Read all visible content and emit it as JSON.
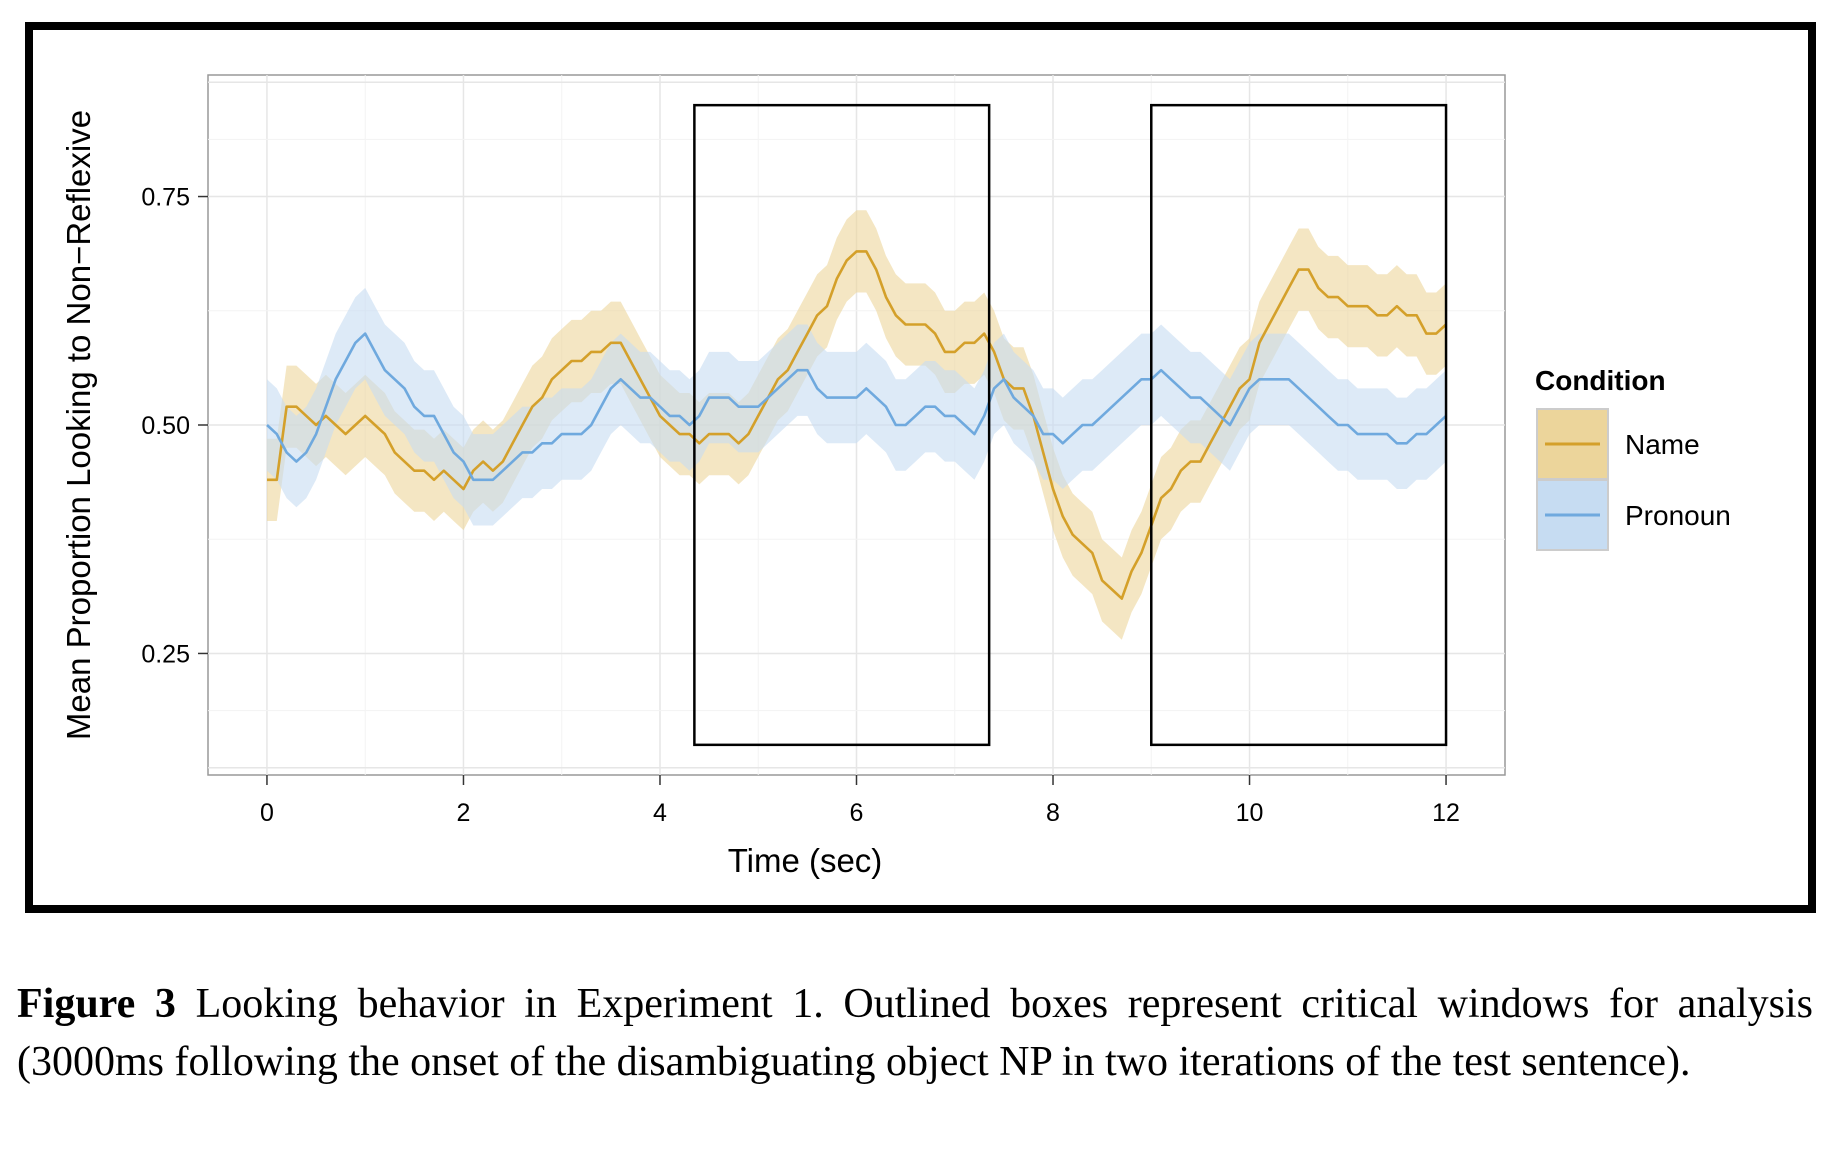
{
  "chart_data": {
    "type": "line",
    "xlabel": "Time (sec)",
    "ylabel": "Mean Proportion Looking to Non−Reflexive",
    "xlim": [
      -0.6,
      12.6
    ],
    "ylim": [
      0.117,
      0.883
    ],
    "x_ticks": [
      "0",
      "2",
      "4",
      "6",
      "8",
      "10",
      "12"
    ],
    "x_tick_values": [
      0,
      2,
      4,
      6,
      8,
      10,
      12
    ],
    "y_ticks": [
      "0.25",
      "0.50",
      "0.75"
    ],
    "y_tick_values": [
      0.25,
      0.5,
      0.75
    ],
    "grid": true,
    "legend": {
      "title": "Condition",
      "position": "right"
    },
    "critical_windows": [
      {
        "x_start": 4.35,
        "x_end": 7.35,
        "y_bottom": 0.15,
        "y_top": 0.85
      },
      {
        "x_start": 9.0,
        "x_end": 12.0,
        "y_bottom": 0.15,
        "y_top": 0.85
      }
    ],
    "series": [
      {
        "name": "Name",
        "color": "#d4a02a",
        "band_color": "#ecd59b",
        "ci_halfwidth": 0.045,
        "points": [
          [
            0,
            0.44
          ],
          [
            0.1,
            0.44
          ],
          [
            0.2,
            0.52
          ],
          [
            0.3,
            0.52
          ],
          [
            0.4,
            0.51
          ],
          [
            0.5,
            0.5
          ],
          [
            0.6,
            0.51
          ],
          [
            0.7,
            0.5
          ],
          [
            0.8,
            0.49
          ],
          [
            0.9,
            0.5
          ],
          [
            1.0,
            0.51
          ],
          [
            1.1,
            0.5
          ],
          [
            1.2,
            0.49
          ],
          [
            1.3,
            0.47
          ],
          [
            1.4,
            0.46
          ],
          [
            1.5,
            0.45
          ],
          [
            1.6,
            0.45
          ],
          [
            1.7,
            0.44
          ],
          [
            1.8,
            0.45
          ],
          [
            1.9,
            0.44
          ],
          [
            2.0,
            0.43
          ],
          [
            2.1,
            0.45
          ],
          [
            2.2,
            0.46
          ],
          [
            2.3,
            0.45
          ],
          [
            2.4,
            0.46
          ],
          [
            2.5,
            0.48
          ],
          [
            2.6,
            0.5
          ],
          [
            2.7,
            0.52
          ],
          [
            2.8,
            0.53
          ],
          [
            2.9,
            0.55
          ],
          [
            3.0,
            0.56
          ],
          [
            3.1,
            0.57
          ],
          [
            3.2,
            0.57
          ],
          [
            3.3,
            0.58
          ],
          [
            3.4,
            0.58
          ],
          [
            3.5,
            0.59
          ],
          [
            3.6,
            0.59
          ],
          [
            3.7,
            0.57
          ],
          [
            3.8,
            0.55
          ],
          [
            3.9,
            0.53
          ],
          [
            4.0,
            0.51
          ],
          [
            4.1,
            0.5
          ],
          [
            4.2,
            0.49
          ],
          [
            4.3,
            0.49
          ],
          [
            4.4,
            0.48
          ],
          [
            4.5,
            0.49
          ],
          [
            4.6,
            0.49
          ],
          [
            4.7,
            0.49
          ],
          [
            4.8,
            0.48
          ],
          [
            4.9,
            0.49
          ],
          [
            5.0,
            0.51
          ],
          [
            5.1,
            0.53
          ],
          [
            5.2,
            0.55
          ],
          [
            5.3,
            0.56
          ],
          [
            5.4,
            0.58
          ],
          [
            5.5,
            0.6
          ],
          [
            5.6,
            0.62
          ],
          [
            5.7,
            0.63
          ],
          [
            5.8,
            0.66
          ],
          [
            5.9,
            0.68
          ],
          [
            6.0,
            0.69
          ],
          [
            6.1,
            0.69
          ],
          [
            6.2,
            0.67
          ],
          [
            6.3,
            0.64
          ],
          [
            6.4,
            0.62
          ],
          [
            6.5,
            0.61
          ],
          [
            6.6,
            0.61
          ],
          [
            6.7,
            0.61
          ],
          [
            6.8,
            0.6
          ],
          [
            6.9,
            0.58
          ],
          [
            7.0,
            0.58
          ],
          [
            7.1,
            0.59
          ],
          [
            7.2,
            0.59
          ],
          [
            7.3,
            0.6
          ],
          [
            7.4,
            0.58
          ],
          [
            7.5,
            0.55
          ],
          [
            7.6,
            0.54
          ],
          [
            7.7,
            0.54
          ],
          [
            7.8,
            0.51
          ],
          [
            7.9,
            0.47
          ],
          [
            8.0,
            0.43
          ],
          [
            8.1,
            0.4
          ],
          [
            8.2,
            0.38
          ],
          [
            8.3,
            0.37
          ],
          [
            8.4,
            0.36
          ],
          [
            8.5,
            0.33
          ],
          [
            8.6,
            0.32
          ],
          [
            8.7,
            0.31
          ],
          [
            8.8,
            0.34
          ],
          [
            8.9,
            0.36
          ],
          [
            9.0,
            0.39
          ],
          [
            9.1,
            0.42
          ],
          [
            9.2,
            0.43
          ],
          [
            9.3,
            0.45
          ],
          [
            9.4,
            0.46
          ],
          [
            9.5,
            0.46
          ],
          [
            9.6,
            0.48
          ],
          [
            9.7,
            0.5
          ],
          [
            9.8,
            0.52
          ],
          [
            9.9,
            0.54
          ],
          [
            10.0,
            0.55
          ],
          [
            10.1,
            0.59
          ],
          [
            10.2,
            0.61
          ],
          [
            10.3,
            0.63
          ],
          [
            10.4,
            0.65
          ],
          [
            10.5,
            0.67
          ],
          [
            10.6,
            0.67
          ],
          [
            10.7,
            0.65
          ],
          [
            10.8,
            0.64
          ],
          [
            10.9,
            0.64
          ],
          [
            11.0,
            0.63
          ],
          [
            11.1,
            0.63
          ],
          [
            11.2,
            0.63
          ],
          [
            11.3,
            0.62
          ],
          [
            11.4,
            0.62
          ],
          [
            11.5,
            0.63
          ],
          [
            11.6,
            0.62
          ],
          [
            11.7,
            0.62
          ],
          [
            11.8,
            0.6
          ],
          [
            11.9,
            0.6
          ],
          [
            12.0,
            0.61
          ]
        ]
      },
      {
        "name": "Pronoun",
        "color": "#6fa9de",
        "band_color": "#c6dcf2",
        "ci_halfwidth": 0.05,
        "points": [
          [
            0,
            0.5
          ],
          [
            0.1,
            0.49
          ],
          [
            0.2,
            0.47
          ],
          [
            0.3,
            0.46
          ],
          [
            0.4,
            0.47
          ],
          [
            0.5,
            0.49
          ],
          [
            0.6,
            0.52
          ],
          [
            0.7,
            0.55
          ],
          [
            0.8,
            0.57
          ],
          [
            0.9,
            0.59
          ],
          [
            1.0,
            0.6
          ],
          [
            1.1,
            0.58
          ],
          [
            1.2,
            0.56
          ],
          [
            1.3,
            0.55
          ],
          [
            1.4,
            0.54
          ],
          [
            1.5,
            0.52
          ],
          [
            1.6,
            0.51
          ],
          [
            1.7,
            0.51
          ],
          [
            1.8,
            0.49
          ],
          [
            1.9,
            0.47
          ],
          [
            2.0,
            0.46
          ],
          [
            2.1,
            0.44
          ],
          [
            2.2,
            0.44
          ],
          [
            2.3,
            0.44
          ],
          [
            2.4,
            0.45
          ],
          [
            2.5,
            0.46
          ],
          [
            2.6,
            0.47
          ],
          [
            2.7,
            0.47
          ],
          [
            2.8,
            0.48
          ],
          [
            2.9,
            0.48
          ],
          [
            3.0,
            0.49
          ],
          [
            3.1,
            0.49
          ],
          [
            3.2,
            0.49
          ],
          [
            3.3,
            0.5
          ],
          [
            3.4,
            0.52
          ],
          [
            3.5,
            0.54
          ],
          [
            3.6,
            0.55
          ],
          [
            3.7,
            0.54
          ],
          [
            3.8,
            0.53
          ],
          [
            3.9,
            0.53
          ],
          [
            4.0,
            0.52
          ],
          [
            4.1,
            0.51
          ],
          [
            4.2,
            0.51
          ],
          [
            4.3,
            0.5
          ],
          [
            4.4,
            0.51
          ],
          [
            4.5,
            0.53
          ],
          [
            4.6,
            0.53
          ],
          [
            4.7,
            0.53
          ],
          [
            4.8,
            0.52
          ],
          [
            4.9,
            0.52
          ],
          [
            5.0,
            0.52
          ],
          [
            5.1,
            0.53
          ],
          [
            5.2,
            0.54
          ],
          [
            5.3,
            0.55
          ],
          [
            5.4,
            0.56
          ],
          [
            5.5,
            0.56
          ],
          [
            5.6,
            0.54
          ],
          [
            5.7,
            0.53
          ],
          [
            5.8,
            0.53
          ],
          [
            5.9,
            0.53
          ],
          [
            6.0,
            0.53
          ],
          [
            6.1,
            0.54
          ],
          [
            6.2,
            0.53
          ],
          [
            6.3,
            0.52
          ],
          [
            6.4,
            0.5
          ],
          [
            6.5,
            0.5
          ],
          [
            6.6,
            0.51
          ],
          [
            6.7,
            0.52
          ],
          [
            6.8,
            0.52
          ],
          [
            6.9,
            0.51
          ],
          [
            7.0,
            0.51
          ],
          [
            7.1,
            0.5
          ],
          [
            7.2,
            0.49
          ],
          [
            7.3,
            0.51
          ],
          [
            7.4,
            0.54
          ],
          [
            7.5,
            0.55
          ],
          [
            7.6,
            0.53
          ],
          [
            7.7,
            0.52
          ],
          [
            7.8,
            0.51
          ],
          [
            7.9,
            0.49
          ],
          [
            8.0,
            0.49
          ],
          [
            8.1,
            0.48
          ],
          [
            8.2,
            0.49
          ],
          [
            8.3,
            0.5
          ],
          [
            8.4,
            0.5
          ],
          [
            8.5,
            0.51
          ],
          [
            8.6,
            0.52
          ],
          [
            8.7,
            0.53
          ],
          [
            8.8,
            0.54
          ],
          [
            8.9,
            0.55
          ],
          [
            9.0,
            0.55
          ],
          [
            9.1,
            0.56
          ],
          [
            9.2,
            0.55
          ],
          [
            9.3,
            0.54
          ],
          [
            9.4,
            0.53
          ],
          [
            9.5,
            0.53
          ],
          [
            9.6,
            0.52
          ],
          [
            9.7,
            0.51
          ],
          [
            9.8,
            0.5
          ],
          [
            9.9,
            0.52
          ],
          [
            10.0,
            0.54
          ],
          [
            10.1,
            0.55
          ],
          [
            10.2,
            0.55
          ],
          [
            10.3,
            0.55
          ],
          [
            10.4,
            0.55
          ],
          [
            10.5,
            0.54
          ],
          [
            10.6,
            0.53
          ],
          [
            10.7,
            0.52
          ],
          [
            10.8,
            0.51
          ],
          [
            10.9,
            0.5
          ],
          [
            11.0,
            0.5
          ],
          [
            11.1,
            0.49
          ],
          [
            11.2,
            0.49
          ],
          [
            11.3,
            0.49
          ],
          [
            11.4,
            0.49
          ],
          [
            11.5,
            0.48
          ],
          [
            11.6,
            0.48
          ],
          [
            11.7,
            0.49
          ],
          [
            11.8,
            0.49
          ],
          [
            11.9,
            0.5
          ],
          [
            12.0,
            0.51
          ]
        ]
      }
    ]
  },
  "caption": {
    "label": "Figure 3",
    "text": " Looking behavior in Experiment 1. Outlined boxes represent critical windows for analysis (3000ms following the onset of the disambiguating object NP in two iterations of the test sentence)."
  }
}
